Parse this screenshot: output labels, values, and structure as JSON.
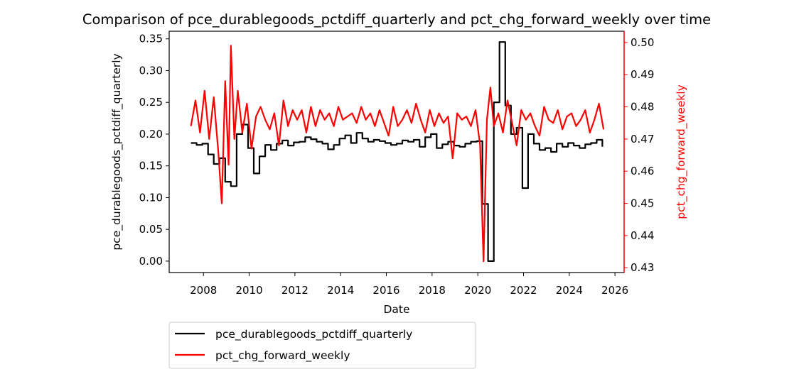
{
  "chart_data": {
    "type": "line",
    "title": "Comparison of pce_durablegoods_pctdiff_quarterly and pct_chg_forward_weekly over time",
    "xlabel": "Date",
    "ylabel_left": "pce_durablegoods_pctdiff_quarterly",
    "ylabel_right": "pct_chg_forward_weekly",
    "xlim": [
      2006.5,
      2026.4
    ],
    "ylim_left": [
      -0.018,
      0.362
    ],
    "ylim_right": [
      0.4285,
      0.5035
    ],
    "x_ticks": [
      2008,
      2010,
      2012,
      2014,
      2016,
      2018,
      2020,
      2022,
      2024,
      2026
    ],
    "y_ticks_left": [
      0.0,
      0.05,
      0.1,
      0.15,
      0.2,
      0.25,
      0.3,
      0.35
    ],
    "y_ticks_right": [
      0.43,
      0.44,
      0.45,
      0.46,
      0.47,
      0.48,
      0.49,
      0.5
    ],
    "legend_position": "below-left",
    "grid": false,
    "series": [
      {
        "name": "pce_durablegoods_pctdiff_quarterly",
        "color": "#000000",
        "axis": "left",
        "x": [
          2007.45,
          2007.7,
          2007.95,
          2008.2,
          2008.45,
          2008.7,
          2008.95,
          2009.2,
          2009.45,
          2009.7,
          2009.95,
          2010.2,
          2010.45,
          2010.7,
          2010.95,
          2011.2,
          2011.45,
          2011.7,
          2011.95,
          2012.2,
          2012.45,
          2012.7,
          2012.95,
          2013.2,
          2013.45,
          2013.7,
          2013.95,
          2014.2,
          2014.45,
          2014.7,
          2014.95,
          2015.2,
          2015.45,
          2015.7,
          2015.95,
          2016.2,
          2016.45,
          2016.7,
          2016.95,
          2017.2,
          2017.45,
          2017.7,
          2017.95,
          2018.2,
          2018.45,
          2018.7,
          2018.95,
          2019.2,
          2019.45,
          2019.7,
          2019.95,
          2020.2,
          2020.45,
          2020.7,
          2020.95,
          2021.2,
          2021.45,
          2021.7,
          2021.95,
          2022.2,
          2022.45,
          2022.7,
          2022.95,
          2023.2,
          2023.45,
          2023.7,
          2023.95,
          2024.2,
          2024.45,
          2024.7,
          2024.95,
          2025.2,
          2025.45
        ],
        "values": [
          0.186,
          0.183,
          0.185,
          0.168,
          0.153,
          0.162,
          0.125,
          0.118,
          0.2,
          0.215,
          0.178,
          0.138,
          0.165,
          0.183,
          0.175,
          0.185,
          0.19,
          0.182,
          0.187,
          0.188,
          0.195,
          0.192,
          0.188,
          0.185,
          0.176,
          0.183,
          0.193,
          0.198,
          0.186,
          0.202,
          0.193,
          0.188,
          0.191,
          0.189,
          0.186,
          0.183,
          0.185,
          0.19,
          0.188,
          0.191,
          0.18,
          0.195,
          0.2,
          0.178,
          0.184,
          0.188,
          0.182,
          0.18,
          0.185,
          0.188,
          0.189,
          0.09,
          0.0,
          0.25,
          0.345,
          0.245,
          0.2,
          0.21,
          0.115,
          0.2,
          0.185,
          0.175,
          0.178,
          0.172,
          0.185,
          0.18,
          0.186,
          0.182,
          0.178,
          0.184,
          0.186,
          0.191,
          0.18
        ]
      },
      {
        "name": "pct_chg_forward_weekly",
        "color": "#ff0000",
        "axis": "right",
        "x": [
          2007.45,
          2007.65,
          2007.85,
          2008.05,
          2008.25,
          2008.45,
          2008.65,
          2008.8,
          2008.95,
          2009.1,
          2009.2,
          2009.35,
          2009.5,
          2009.7,
          2009.9,
          2010.1,
          2010.3,
          2010.5,
          2010.7,
          2010.9,
          2011.1,
          2011.3,
          2011.5,
          2011.7,
          2011.9,
          2012.1,
          2012.3,
          2012.5,
          2012.7,
          2012.9,
          2013.1,
          2013.3,
          2013.5,
          2013.7,
          2013.9,
          2014.1,
          2014.3,
          2014.5,
          2014.7,
          2014.9,
          2015.1,
          2015.3,
          2015.5,
          2015.7,
          2015.9,
          2016.1,
          2016.3,
          2016.5,
          2016.7,
          2016.9,
          2017.1,
          2017.3,
          2017.5,
          2017.7,
          2017.9,
          2018.1,
          2018.3,
          2018.5,
          2018.7,
          2018.9,
          2019.1,
          2019.3,
          2019.5,
          2019.7,
          2019.9,
          2020.1,
          2020.25,
          2020.4,
          2020.55,
          2020.7,
          2020.9,
          2021.1,
          2021.3,
          2021.5,
          2021.7,
          2021.9,
          2022.1,
          2022.3,
          2022.5,
          2022.7,
          2022.9,
          2023.1,
          2023.3,
          2023.5,
          2023.7,
          2023.9,
          2024.1,
          2024.3,
          2024.5,
          2024.7,
          2024.9,
          2025.1,
          2025.3,
          2025.5
        ],
        "values": [
          0.474,
          0.482,
          0.472,
          0.485,
          0.47,
          0.483,
          0.466,
          0.45,
          0.488,
          0.462,
          0.499,
          0.47,
          0.485,
          0.472,
          0.481,
          0.467,
          0.477,
          0.48,
          0.476,
          0.473,
          0.478,
          0.468,
          0.482,
          0.474,
          0.479,
          0.476,
          0.479,
          0.472,
          0.48,
          0.474,
          0.479,
          0.476,
          0.478,
          0.474,
          0.48,
          0.476,
          0.477,
          0.478,
          0.475,
          0.48,
          0.476,
          0.478,
          0.474,
          0.479,
          0.475,
          0.471,
          0.48,
          0.474,
          0.476,
          0.479,
          0.475,
          0.481,
          0.476,
          0.472,
          0.479,
          0.474,
          0.478,
          0.475,
          0.477,
          0.464,
          0.478,
          0.476,
          0.477,
          0.474,
          0.479,
          0.468,
          0.432,
          0.476,
          0.486,
          0.474,
          0.478,
          0.472,
          0.482,
          0.475,
          0.468,
          0.479,
          0.476,
          0.478,
          0.474,
          0.471,
          0.48,
          0.476,
          0.475,
          0.479,
          0.473,
          0.477,
          0.478,
          0.474,
          0.476,
          0.479,
          0.472,
          0.476,
          0.481,
          0.473
        ]
      }
    ]
  }
}
